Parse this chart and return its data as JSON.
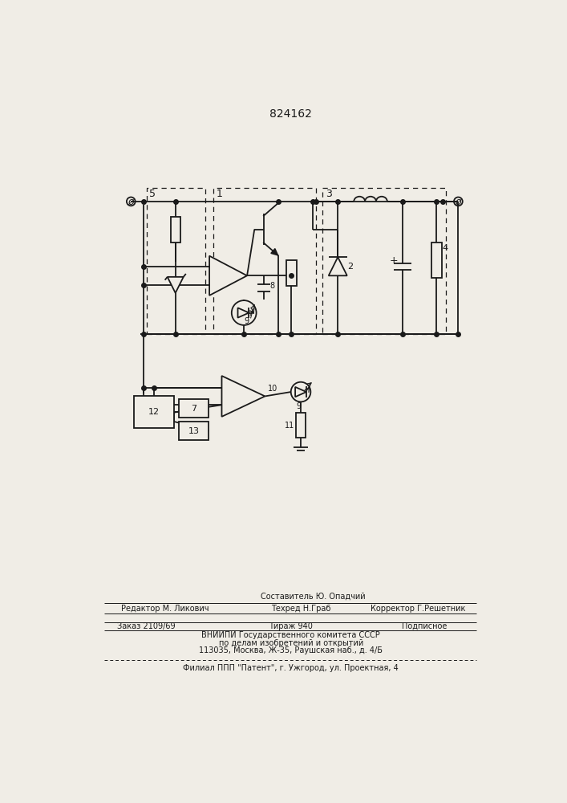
{
  "patent_number": "824162",
  "bg_color": "#f0ede6",
  "line_color": "#1a1a1a",
  "lw": 1.3,
  "dlw": 0.9,
  "footer": {
    "sestavitel": "Составитель Ю. Опадчий",
    "redaktor": "Редактор М. Ликович",
    "tehred": "Техред Н.Граб",
    "korrektor": "Корректор Г.Решетник",
    "zakaz": "Заказ 2109/69",
    "tirazh": "Тираж 940",
    "podpisnoe": "Подписное",
    "vniipи": "ВНИИПИ Государственного комитета СССР",
    "po_delam": "по делам изобретений и открытий",
    "address": "113035, Москва, Ж-35, Раушская наб., д. 4/Б",
    "filial": "Филиал ППП \"Патент\", г. Ужгород, ул. Проектная, 4"
  }
}
